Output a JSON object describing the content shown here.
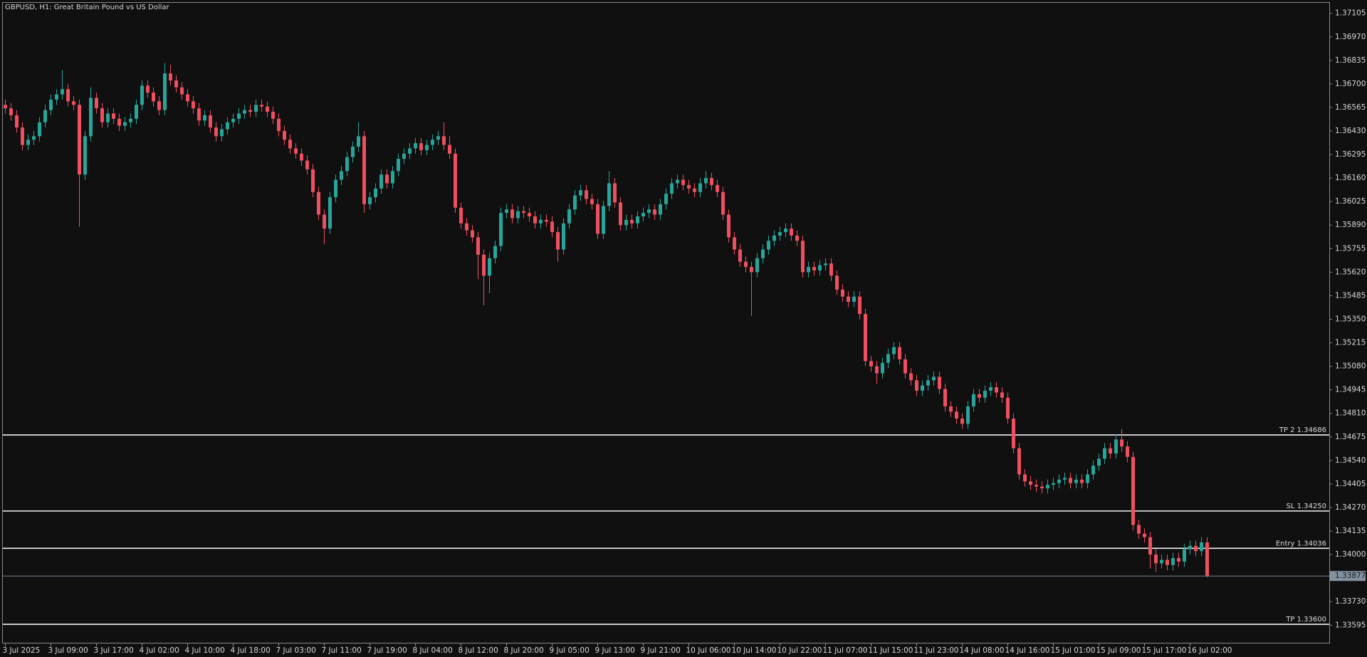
{
  "chart_data": {
    "type": "candlestick",
    "title": "GBPUSD, H1:  Great Britain Pound vs US Dollar",
    "up_color": "#26a69a",
    "down_color": "#ef4f5e",
    "categories": [
      "3 Jul 2025",
      null,
      null,
      null,
      null,
      null,
      null,
      null,
      "3 Jul 09:00",
      null,
      null,
      null,
      null,
      null,
      null,
      null,
      "3 Jul 17:00",
      null,
      null,
      null,
      null,
      null,
      null,
      null,
      "4 Jul 02:00",
      null,
      null,
      null,
      null,
      null,
      null,
      null,
      "4 Jul 10:00",
      null,
      null,
      null,
      null,
      null,
      null,
      null,
      "4 Jul 18:00",
      null,
      null,
      null,
      null,
      null,
      null,
      null,
      "7 Jul 03:00",
      null,
      null,
      null,
      null,
      null,
      null,
      null,
      "7 Jul 11:00",
      null,
      null,
      null,
      null,
      null,
      null,
      null,
      "7 Jul 19:00",
      null,
      null,
      null,
      null,
      null,
      null,
      null,
      "8 Jul 04:00",
      null,
      null,
      null,
      null,
      null,
      null,
      null,
      "8 Jul 12:00",
      null,
      null,
      null,
      null,
      null,
      null,
      null,
      "8 Jul 20:00",
      null,
      null,
      null,
      null,
      null,
      null,
      null,
      "9 Jul 05:00",
      null,
      null,
      null,
      null,
      null,
      null,
      null,
      "9 Jul 13:00",
      null,
      null,
      null,
      null,
      null,
      null,
      null,
      "9 Jul 21:00",
      null,
      null,
      null,
      null,
      null,
      null,
      null,
      "10 Jul 06:00",
      null,
      null,
      null,
      null,
      null,
      null,
      null,
      "10 Jul 14:00",
      null,
      null,
      null,
      null,
      null,
      null,
      null,
      "10 Jul 22:00",
      null,
      null,
      null,
      null,
      null,
      null,
      null,
      "11 Jul 07:00",
      null,
      null,
      null,
      null,
      null,
      null,
      null,
      "11 Jul 15:00",
      null,
      null,
      null,
      null,
      null,
      null,
      null,
      "11 Jul 23:00",
      null,
      null,
      null,
      null,
      null,
      null,
      null,
      "14 Jul 08:00",
      null,
      null,
      null,
      null,
      null,
      null,
      null,
      "14 Jul 16:00",
      null,
      null,
      null,
      null,
      null,
      null,
      null,
      "15 Jul 01:00",
      null,
      null,
      null,
      null,
      null,
      null,
      null,
      "15 Jul 09:00",
      null,
      null,
      null,
      null,
      null,
      null,
      null,
      "15 Jul 17:00",
      null,
      null,
      null,
      null,
      null,
      null,
      null,
      "16 Jul 02:00",
      null,
      null,
      null
    ],
    "open": [
      1.3658,
      1.3656,
      1.3652,
      1.3645,
      1.3635,
      1.3638,
      1.364,
      1.3648,
      1.3655,
      1.3661,
      1.3664,
      1.3667,
      1.366,
      1.3658,
      1.3618,
      1.364,
      1.3662,
      1.3656,
      1.3648,
      1.3653,
      1.365,
      1.3646,
      1.3648,
      1.365,
      1.3658,
      1.3669,
      1.3665,
      1.366,
      1.3655,
      1.3676,
      1.3672,
      1.3668,
      1.3664,
      1.366,
      1.3656,
      1.3649,
      1.3652,
      1.3645,
      1.364,
      1.3644,
      1.3648,
      1.365,
      1.3653,
      1.3655,
      1.3654,
      1.3658,
      1.3657,
      1.3654,
      1.365,
      1.3643,
      1.3638,
      1.3633,
      1.363,
      1.3626,
      1.3621,
      1.3608,
      1.3595,
      1.3587,
      1.3605,
      1.3615,
      1.362,
      1.3628,
      1.3634,
      1.364,
      1.3601,
      1.3605,
      1.361,
      1.3618,
      1.3613,
      1.362,
      1.3627,
      1.363,
      1.3633,
      1.3636,
      1.3632,
      1.3635,
      1.3638,
      1.364,
      1.3635,
      1.363,
      1.3599,
      1.359,
      1.3586,
      1.3582,
      1.3572,
      1.356,
      1.357,
      1.3577,
      1.3596,
      1.3598,
      1.3593,
      1.3597,
      1.3596,
      1.3594,
      1.359,
      1.3592,
      1.3591,
      1.3585,
      1.3575,
      1.359,
      1.3598,
      1.3606,
      1.3609,
      1.3604,
      1.3601,
      1.3584,
      1.36,
      1.3613,
      1.3602,
      1.3589,
      1.3592,
      1.359,
      1.3594,
      1.3596,
      1.3598,
      1.3595,
      1.3601,
      1.3607,
      1.3613,
      1.3615,
      1.3612,
      1.361,
      1.3608,
      1.3613,
      1.3616,
      1.3612,
      1.3608,
      1.3595,
      1.3582,
      1.3575,
      1.3568,
      1.3565,
      1.3562,
      1.357,
      1.3575,
      1.358,
      1.3583,
      1.3585,
      1.3587,
      1.3583,
      1.358,
      1.3562,
      1.3565,
      1.3563,
      1.3566,
      1.3567,
      1.356,
      1.3552,
      1.3548,
      1.3545,
      1.3548,
      1.3538,
      1.3511,
      1.3508,
      1.3504,
      1.351,
      1.3515,
      1.3519,
      1.3512,
      1.3504,
      1.35,
      1.3494,
      1.3497,
      1.35,
      1.3502,
      1.3495,
      1.3485,
      1.3482,
      1.3478,
      1.3475,
      1.3485,
      1.3492,
      1.349,
      1.3494,
      1.3496,
      1.3493,
      1.349,
      1.3478,
      1.3461,
      1.3446,
      1.3442,
      1.344,
      1.3439,
      1.3438,
      1.344,
      1.3441,
      1.3443,
      1.3444,
      1.3441,
      1.3443,
      1.3441,
      1.3446,
      1.3451,
      1.3455,
      1.3461,
      1.3458,
      1.3466,
      1.3462,
      1.3456,
      1.3417,
      1.3412,
      1.341,
      1.34,
      1.3395,
      1.3397,
      1.3394,
      1.3398,
      1.3396,
      1.3403,
      1.3405,
      1.3402,
      1.3407
    ],
    "high": [
      1.3661,
      1.3659,
      1.3655,
      1.3648,
      1.3641,
      1.3643,
      1.3651,
      1.3658,
      1.3664,
      1.3667,
      1.3678,
      1.367,
      1.3663,
      1.3661,
      1.3643,
      1.3668,
      1.3665,
      1.3659,
      1.3656,
      1.3656,
      1.3653,
      1.3651,
      1.3653,
      1.3661,
      1.3672,
      1.3672,
      1.3668,
      1.3663,
      1.3682,
      1.3681,
      1.3675,
      1.3671,
      1.3667,
      1.3663,
      1.3659,
      1.3655,
      1.3655,
      1.3648,
      1.3647,
      1.3651,
      1.3653,
      1.3656,
      1.3658,
      1.3658,
      1.3661,
      1.3661,
      1.366,
      1.3657,
      1.3653,
      1.3646,
      1.3641,
      1.3636,
      1.3633,
      1.3629,
      1.3624,
      1.3611,
      1.3598,
      1.3608,
      1.3618,
      1.3623,
      1.3631,
      1.3637,
      1.3648,
      1.3643,
      1.3608,
      1.3613,
      1.3621,
      1.3621,
      1.3623,
      1.363,
      1.3633,
      1.3636,
      1.3639,
      1.3639,
      1.3638,
      1.3641,
      1.3643,
      1.3648,
      1.364,
      1.3633,
      1.3602,
      1.3593,
      1.3589,
      1.3585,
      1.3575,
      1.3573,
      1.358,
      1.3599,
      1.3601,
      1.3601,
      1.36,
      1.36,
      1.3599,
      1.3597,
      1.3595,
      1.3595,
      1.3594,
      1.3588,
      1.3593,
      1.3601,
      1.3609,
      1.3612,
      1.3612,
      1.3607,
      1.3604,
      1.3603,
      1.362,
      1.3616,
      1.3605,
      1.3595,
      1.3595,
      1.3597,
      1.3599,
      1.3601,
      1.3601,
      1.3604,
      1.361,
      1.3616,
      1.3618,
      1.3618,
      1.3615,
      1.3613,
      1.3616,
      1.362,
      1.3619,
      1.3615,
      1.3611,
      1.3598,
      1.3585,
      1.3578,
      1.3571,
      1.3568,
      1.3573,
      1.3578,
      1.3583,
      1.3586,
      1.3588,
      1.359,
      1.359,
      1.3586,
      1.3583,
      1.3568,
      1.3568,
      1.3569,
      1.357,
      1.357,
      1.3563,
      1.3555,
      1.3551,
      1.3551,
      1.3551,
      1.3541,
      1.3514,
      1.3511,
      1.3513,
      1.3518,
      1.3522,
      1.3522,
      1.3515,
      1.3507,
      1.3503,
      1.35,
      1.3503,
      1.3505,
      1.3505,
      1.3498,
      1.3488,
      1.3485,
      1.3481,
      1.3488,
      1.3495,
      1.3495,
      1.3497,
      1.3499,
      1.3499,
      1.3496,
      1.3493,
      1.3481,
      1.3464,
      1.3449,
      1.3445,
      1.3443,
      1.3442,
      1.3443,
      1.3444,
      1.3446,
      1.3447,
      1.3447,
      1.3446,
      1.3446,
      1.3449,
      1.3454,
      1.3458,
      1.3464,
      1.3464,
      1.3469,
      1.3472,
      1.3465,
      1.3459,
      1.342,
      1.3415,
      1.3413,
      1.3403,
      1.34,
      1.34,
      1.3401,
      1.3401,
      1.3406,
      1.3408,
      1.3408,
      1.341,
      1.341
    ],
    "low": [
      1.3653,
      1.3649,
      1.3642,
      1.3632,
      1.3632,
      1.3635,
      1.3637,
      1.3645,
      1.3652,
      1.3658,
      1.3661,
      1.3657,
      1.3655,
      1.3588,
      1.3615,
      1.3637,
      1.3653,
      1.3645,
      1.3645,
      1.3647,
      1.3643,
      1.3643,
      1.3645,
      1.3647,
      1.3655,
      1.3662,
      1.3657,
      1.3652,
      1.3652,
      1.3669,
      1.3665,
      1.3661,
      1.3657,
      1.3653,
      1.3646,
      1.3646,
      1.3642,
      1.3637,
      1.3637,
      1.3641,
      1.3645,
      1.3647,
      1.365,
      1.3651,
      1.3651,
      1.3654,
      1.3651,
      1.3647,
      1.364,
      1.3635,
      1.363,
      1.3627,
      1.3623,
      1.3618,
      1.3605,
      1.3592,
      1.3578,
      1.3584,
      1.3602,
      1.3612,
      1.3617,
      1.3625,
      1.3631,
      1.3596,
      1.3598,
      1.3602,
      1.3607,
      1.361,
      1.361,
      1.3617,
      1.3624,
      1.3627,
      1.363,
      1.3629,
      1.3629,
      1.3632,
      1.3635,
      1.3632,
      1.3627,
      1.3596,
      1.3587,
      1.3583,
      1.3579,
      1.3558,
      1.3543,
      1.355,
      1.3567,
      1.3574,
      1.3593,
      1.359,
      1.359,
      1.3593,
      1.3591,
      1.3587,
      1.3587,
      1.3588,
      1.3582,
      1.3568,
      1.3572,
      1.3587,
      1.3595,
      1.3603,
      1.3601,
      1.3598,
      1.3581,
      1.3581,
      1.3597,
      1.3599,
      1.3586,
      1.3586,
      1.3587,
      1.3587,
      1.3591,
      1.3593,
      1.3592,
      1.3592,
      1.3598,
      1.3604,
      1.361,
      1.3609,
      1.3607,
      1.3605,
      1.3605,
      1.361,
      1.3609,
      1.3605,
      1.3592,
      1.3579,
      1.3572,
      1.3565,
      1.3562,
      1.3537,
      1.3559,
      1.3567,
      1.3572,
      1.3577,
      1.358,
      1.3582,
      1.358,
      1.3577,
      1.3559,
      1.3559,
      1.356,
      1.356,
      1.3563,
      1.3557,
      1.3549,
      1.3545,
      1.3542,
      1.3542,
      1.3535,
      1.3508,
      1.3505,
      1.3498,
      1.3501,
      1.3507,
      1.3512,
      1.3509,
      1.3501,
      1.3497,
      1.3491,
      1.3491,
      1.3494,
      1.3497,
      1.3492,
      1.3482,
      1.3479,
      1.3475,
      1.3472,
      1.3472,
      1.3482,
      1.3487,
      1.3487,
      1.3491,
      1.349,
      1.3487,
      1.3475,
      1.3458,
      1.3443,
      1.3439,
      1.3437,
      1.3436,
      1.3435,
      1.3435,
      1.3437,
      1.3438,
      1.344,
      1.3438,
      1.3438,
      1.3438,
      1.3438,
      1.3443,
      1.3448,
      1.3452,
      1.3455,
      1.3455,
      1.3459,
      1.3453,
      1.3414,
      1.3409,
      1.3407,
      1.3392,
      1.339,
      1.3392,
      1.3391,
      1.3391,
      1.3393,
      1.3393,
      1.34,
      1.3399,
      1.3399,
      1.3387
    ],
    "close": [
      1.3656,
      1.3652,
      1.3645,
      1.3635,
      1.3638,
      1.364,
      1.3648,
      1.3655,
      1.3661,
      1.3664,
      1.3667,
      1.366,
      1.3658,
      1.3618,
      1.364,
      1.3662,
      1.3656,
      1.3648,
      1.3653,
      1.365,
      1.3646,
      1.3648,
      1.365,
      1.3658,
      1.3669,
      1.3665,
      1.366,
      1.3655,
      1.3676,
      1.3672,
      1.3668,
      1.3664,
      1.366,
      1.3656,
      1.3649,
      1.3652,
      1.3645,
      1.364,
      1.3644,
      1.3648,
      1.365,
      1.3653,
      1.3655,
      1.3654,
      1.3658,
      1.3657,
      1.3654,
      1.365,
      1.3643,
      1.3638,
      1.3633,
      1.363,
      1.3626,
      1.3621,
      1.3608,
      1.3595,
      1.3587,
      1.3605,
      1.3615,
      1.362,
      1.3628,
      1.3634,
      1.364,
      1.3601,
      1.3605,
      1.361,
      1.3618,
      1.3613,
      1.362,
      1.3627,
      1.363,
      1.3633,
      1.3636,
      1.3632,
      1.3635,
      1.3638,
      1.364,
      1.3635,
      1.363,
      1.3599,
      1.359,
      1.3586,
      1.3582,
      1.3572,
      1.356,
      1.357,
      1.3577,
      1.3596,
      1.3598,
      1.3593,
      1.3597,
      1.3596,
      1.3594,
      1.359,
      1.3592,
      1.3591,
      1.3585,
      1.3575,
      1.359,
      1.3598,
      1.3606,
      1.3609,
      1.3604,
      1.3601,
      1.3584,
      1.36,
      1.3613,
      1.3602,
      1.3589,
      1.3592,
      1.359,
      1.3594,
      1.3596,
      1.3598,
      1.3595,
      1.3601,
      1.3607,
      1.3613,
      1.3615,
      1.3612,
      1.361,
      1.3608,
      1.3613,
      1.3616,
      1.3612,
      1.3608,
      1.3595,
      1.3582,
      1.3575,
      1.3568,
      1.3565,
      1.3562,
      1.357,
      1.3575,
      1.358,
      1.3583,
      1.3585,
      1.3587,
      1.3583,
      1.358,
      1.3562,
      1.3565,
      1.3563,
      1.3566,
      1.3567,
      1.356,
      1.3552,
      1.3548,
      1.3545,
      1.3548,
      1.3538,
      1.3511,
      1.3508,
      1.3504,
      1.351,
      1.3515,
      1.3519,
      1.3512,
      1.3504,
      1.35,
      1.3494,
      1.3497,
      1.35,
      1.3502,
      1.3495,
      1.3485,
      1.3482,
      1.3478,
      1.3475,
      1.3485,
      1.3492,
      1.349,
      1.3494,
      1.3496,
      1.3493,
      1.349,
      1.3478,
      1.3461,
      1.3446,
      1.3442,
      1.344,
      1.3439,
      1.3438,
      1.344,
      1.3441,
      1.3443,
      1.3444,
      1.3441,
      1.3443,
      1.3441,
      1.3446,
      1.3451,
      1.3455,
      1.3461,
      1.3458,
      1.3466,
      1.3462,
      1.3456,
      1.3417,
      1.3412,
      1.341,
      1.34,
      1.3395,
      1.3397,
      1.3394,
      1.3398,
      1.3396,
      1.3403,
      1.3405,
      1.3402,
      1.3407,
      1.33877
    ],
    "ylim": [
      1.3349,
      1.37165
    ],
    "yticks": [
      1.37105,
      {
        "value": 1.3697,
        "label": "1.36970"
      },
      1.36835,
      {
        "value": 1.367,
        "label": "1.36700"
      },
      1.36565,
      {
        "value": 1.3643,
        "label": "1.36430"
      },
      1.36295,
      {
        "value": 1.3616,
        "label": "1.36160"
      },
      1.36025,
      {
        "value": 1.3589,
        "label": "1.35890"
      },
      1.35755,
      {
        "value": 1.3562,
        "label": "1.35620"
      },
      1.35485,
      {
        "value": 1.3535,
        "label": "1.35350"
      },
      1.35215,
      {
        "value": 1.3508,
        "label": "1.35080"
      },
      1.34945,
      {
        "value": 1.3481,
        "label": "1.34810"
      },
      1.34675,
      {
        "value": 1.3454,
        "label": "1.34540"
      },
      1.34405,
      {
        "value": 1.3427,
        "label": "1.34270"
      },
      1.34135,
      {
        "value": 1.34,
        "label": "1.34000"
      },
      {
        "value": 1.3373,
        "label": "1.33730"
      },
      1.33595
    ],
    "levels": [
      {
        "label": "TP 2 1.34686",
        "value": 1.34686
      },
      {
        "label": "SL 1.34250",
        "value": 1.3425
      },
      {
        "label": "Entry 1.34036",
        "value": 1.34036
      },
      {
        "label": "TP 1.33600",
        "value": 1.336
      }
    ],
    "last_price": 1.33877
  }
}
